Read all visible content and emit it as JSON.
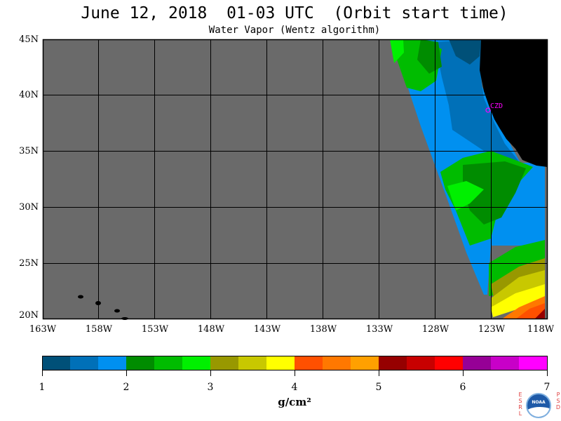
{
  "header": {
    "title": "June 12, 2018  01-03 UTC  (Orbit start time)",
    "subtitle": "Water Vapor (Wentz algorithm)"
  },
  "map": {
    "lat_labels": [
      "45N",
      "40N",
      "35N",
      "30N",
      "25N",
      "20N"
    ],
    "lon_labels": [
      "163W",
      "158W",
      "153W",
      "148W",
      "143W",
      "138W",
      "133W",
      "128W",
      "123W",
      "118W"
    ],
    "site_label": "CZD",
    "colors": {
      "no_data": "#6a6a6a",
      "land": "#000000",
      "grid": "#000000",
      "site": "#ff00ff"
    }
  },
  "colorbar": {
    "tick_labels": [
      "1",
      "2",
      "3",
      "4",
      "5",
      "6",
      "7"
    ],
    "units": "g/cm²",
    "colors": [
      "#005078",
      "#0070b8",
      "#0090f0",
      "#008c00",
      "#00bc00",
      "#00f000",
      "#989800",
      "#c8c800",
      "#ffff00",
      "#ff5000",
      "#ff7800",
      "#ffa000",
      "#960000",
      "#c80000",
      "#ff0000",
      "#960096",
      "#c800c8",
      "#ff00ff"
    ]
  },
  "logo": {
    "left_letters": "ESRL",
    "right_letters": "PSD",
    "emblem_text": "NOAA"
  }
}
